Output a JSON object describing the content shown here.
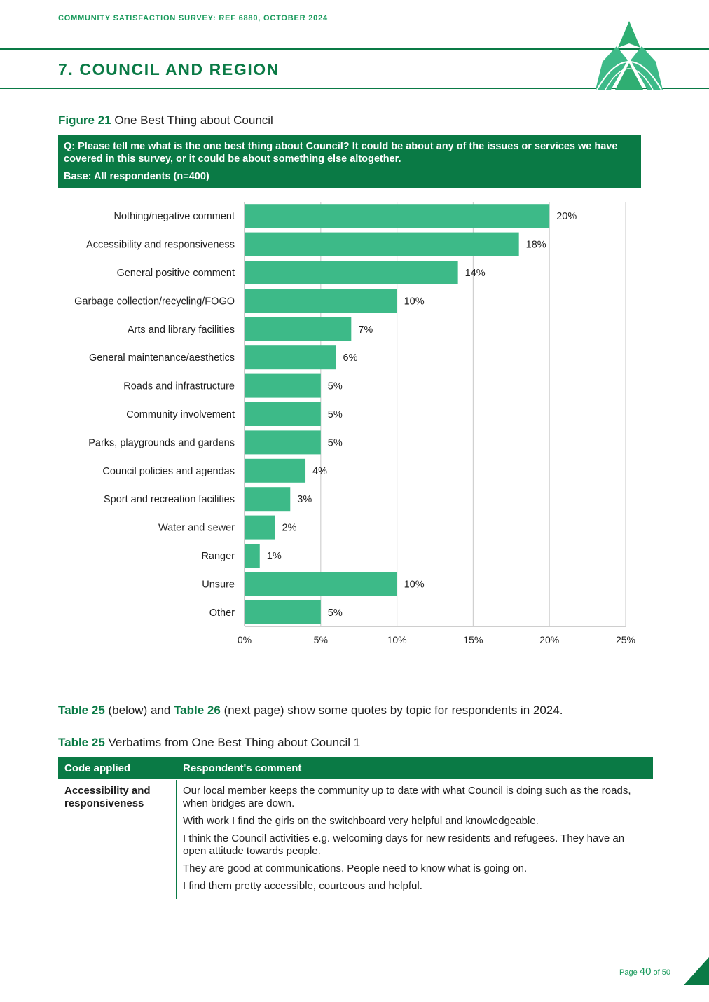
{
  "header": {
    "survey_ref": "COMMUNITY SATISFACTION SURVEY: REF 6880, OCTOBER 2024",
    "section_title": "7. COUNCIL AND REGION"
  },
  "figure": {
    "label": "Figure 21",
    "title": "One Best Thing about Council",
    "question": "Q: Please tell me what is the one best thing about Council? It could be about any of the issues or services we have covered in this survey, or it could be about something else altogether.",
    "base": "Base: All respondents (n=400)"
  },
  "chart_data": {
    "type": "bar",
    "orientation": "horizontal",
    "categories": [
      "Nothing/negative comment",
      "Accessibility and responsiveness",
      "General positive comment",
      "Garbage collection/recycling/FOGO",
      "Arts and library facilities",
      "General maintenance/aesthetics",
      "Roads and infrastructure",
      "Community involvement",
      "Parks, playgrounds and gardens",
      "Council policies and agendas",
      "Sport and recreation facilities",
      "Water and sewer",
      "Ranger",
      "Unsure",
      "Other"
    ],
    "values": [
      20,
      18,
      14,
      10,
      7,
      6,
      5,
      5,
      5,
      4,
      3,
      2,
      1,
      10,
      5
    ],
    "value_labels": [
      "20%",
      "18%",
      "14%",
      "10%",
      "7%",
      "6%",
      "5%",
      "5%",
      "5%",
      "4%",
      "3%",
      "2%",
      "1%",
      "10%",
      "5%"
    ],
    "x_ticks": [
      "0%",
      "5%",
      "10%",
      "15%",
      "20%",
      "25%"
    ],
    "xlim": [
      0,
      25
    ],
    "grid": true,
    "bar_color": "#3dba88"
  },
  "intro": {
    "t25": "Table 25",
    "mid": " (below) and ",
    "t26": "Table 26",
    "rest": " (next page) show some quotes by topic for respondents in 2024."
  },
  "table": {
    "label": "Table 25",
    "title": "Verbatims from One Best Thing about Council 1",
    "col_code": "Code applied",
    "col_comment": "Respondent's comment",
    "code": "Accessibility and responsiveness",
    "comments": [
      "Our local member keeps the community up to date with what Council is doing such as the roads, when bridges are down.",
      "With work I find the girls on the switchboard very helpful and knowledgeable.",
      "I think the Council activities e.g. welcoming days for new residents and refugees. They have an open attitude towards people.",
      "They are good at communications. People need to know what is going on.",
      "I find them pretty accessible, courteous and helpful."
    ]
  },
  "footer": {
    "page_word": "Page",
    "page_num": "40",
    "of_word": "of 50"
  },
  "colors": {
    "brand_green": "#0a7a45",
    "light_green": "#3dba88"
  }
}
